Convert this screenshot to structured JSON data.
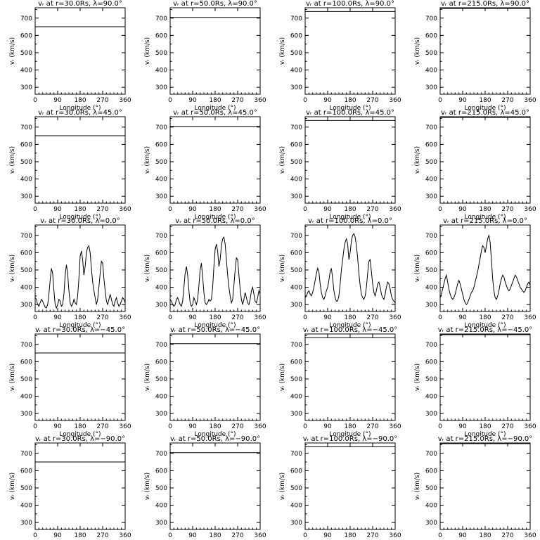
{
  "common": {
    "xlabel": "Longitude (°)",
    "ylabel": "vᵣ (km/s)",
    "xlim": [
      0,
      360
    ],
    "ylim": [
      260,
      760
    ],
    "xticks": [
      0,
      90,
      180,
      270,
      360
    ],
    "yticks": [
      300,
      400,
      500,
      600,
      700
    ],
    "color": "#000000"
  },
  "chart_data": [
    {
      "type": "line",
      "title": "vᵣ at r=30.0Rs, λ=90.0°",
      "x": [
        0,
        360
      ],
      "y": [
        650,
        650
      ]
    },
    {
      "type": "line",
      "title": "vᵣ at r=50.0Rs, λ=90.0°",
      "x": [
        0,
        360
      ],
      "y": [
        704,
        704
      ]
    },
    {
      "type": "line",
      "title": "vᵣ at r=100.0Rs, λ=90.0°",
      "x": [
        0,
        360
      ],
      "y": [
        738,
        738
      ]
    },
    {
      "type": "line",
      "title": "vᵣ at r=215.0Rs, λ=90.0°",
      "x": [
        0,
        360
      ],
      "y": [
        756,
        756
      ]
    },
    {
      "type": "line",
      "title": "vᵣ at r=30.0Rs, λ=45.0°",
      "x": [
        0,
        360
      ],
      "y": [
        650,
        650
      ]
    },
    {
      "type": "line",
      "title": "vᵣ at r=50.0Rs, λ=45.0°",
      "x": [
        0,
        360
      ],
      "y": [
        704,
        704
      ]
    },
    {
      "type": "line",
      "title": "vᵣ at r=100.0Rs, λ=45.0°",
      "x": [
        0,
        360
      ],
      "y": [
        738,
        738
      ]
    },
    {
      "type": "line",
      "title": "vᵣ at r=215.0Rs, λ=45.0°",
      "x": [
        0,
        360
      ],
      "y": [
        756,
        756
      ]
    },
    {
      "type": "line",
      "title": "vᵣ at r=30.0Rs, λ=0.0°",
      "x": [
        0,
        5,
        10,
        15,
        20,
        25,
        30,
        35,
        40,
        45,
        50,
        55,
        60,
        65,
        70,
        75,
        80,
        85,
        90,
        95,
        100,
        105,
        110,
        115,
        120,
        125,
        130,
        135,
        140,
        145,
        150,
        155,
        160,
        165,
        170,
        175,
        180,
        185,
        190,
        195,
        200,
        205,
        210,
        215,
        220,
        225,
        230,
        235,
        240,
        245,
        250,
        255,
        260,
        265,
        270,
        275,
        280,
        285,
        290,
        295,
        300,
        305,
        310,
        315,
        320,
        325,
        330,
        335,
        340,
        345,
        350,
        355,
        360
      ],
      "y": [
        340,
        330,
        300,
        290,
        310,
        330,
        320,
        300,
        285,
        280,
        300,
        360,
        440,
        510,
        480,
        380,
        300,
        280,
        300,
        330,
        320,
        290,
        300,
        360,
        470,
        530,
        480,
        380,
        310,
        290,
        300,
        330,
        310,
        300,
        350,
        450,
        580,
        610,
        560,
        470,
        520,
        600,
        630,
        640,
        600,
        510,
        430,
        380,
        340,
        300,
        330,
        400,
        480,
        550,
        540,
        450,
        380,
        320,
        300,
        330,
        360,
        330,
        300,
        290,
        320,
        340,
        310,
        290,
        300,
        320,
        340,
        330,
        310
      ]
    },
    {
      "type": "line",
      "title": "vᵣ at r=50.0Rs, λ=0.0°",
      "x": [
        0,
        5,
        10,
        15,
        20,
        25,
        30,
        35,
        40,
        45,
        50,
        55,
        60,
        65,
        70,
        75,
        80,
        85,
        90,
        95,
        100,
        105,
        110,
        115,
        120,
        125,
        130,
        135,
        140,
        145,
        150,
        155,
        160,
        165,
        170,
        175,
        180,
        185,
        190,
        195,
        200,
        205,
        210,
        215,
        220,
        225,
        230,
        235,
        240,
        245,
        250,
        255,
        260,
        265,
        270,
        275,
        280,
        285,
        290,
        295,
        300,
        305,
        310,
        315,
        320,
        325,
        330,
        335,
        340,
        345,
        350,
        355,
        360
      ],
      "y": [
        330,
        320,
        300,
        290,
        300,
        330,
        340,
        320,
        300,
        290,
        320,
        400,
        480,
        520,
        470,
        380,
        310,
        290,
        300,
        340,
        320,
        300,
        330,
        410,
        500,
        540,
        460,
        370,
        310,
        300,
        310,
        330,
        320,
        330,
        400,
        520,
        620,
        650,
        610,
        520,
        560,
        640,
        680,
        690,
        650,
        560,
        470,
        400,
        350,
        310,
        330,
        410,
        500,
        570,
        560,
        470,
        390,
        330,
        300,
        330,
        370,
        340,
        310,
        300,
        330,
        380,
        400,
        360,
        320,
        310,
        340,
        380,
        360
      ]
    },
    {
      "type": "line",
      "title": "vᵣ at r=100.0Rs, λ=0.0°",
      "x": [
        0,
        5,
        10,
        15,
        20,
        25,
        30,
        35,
        40,
        45,
        50,
        55,
        60,
        65,
        70,
        75,
        80,
        85,
        90,
        95,
        100,
        105,
        110,
        115,
        120,
        125,
        130,
        135,
        140,
        145,
        150,
        155,
        160,
        165,
        170,
        175,
        180,
        185,
        190,
        195,
        200,
        205,
        210,
        215,
        220,
        225,
        230,
        235,
        240,
        245,
        250,
        255,
        260,
        265,
        270,
        275,
        280,
        285,
        290,
        295,
        300,
        305,
        310,
        315,
        320,
        325,
        330,
        335,
        340,
        345,
        350,
        355,
        360
      ],
      "y": [
        340,
        350,
        370,
        380,
        360,
        350,
        370,
        400,
        440,
        480,
        510,
        490,
        420,
        370,
        340,
        330,
        350,
        380,
        400,
        440,
        490,
        510,
        450,
        380,
        340,
        320,
        320,
        350,
        420,
        500,
        560,
        620,
        660,
        680,
        650,
        560,
        600,
        670,
        700,
        710,
        690,
        640,
        570,
        480,
        410,
        360,
        340,
        330,
        350,
        400,
        480,
        550,
        560,
        490,
        420,
        370,
        350,
        380,
        420,
        430,
        400,
        360,
        340,
        330,
        360,
        400,
        430,
        420,
        390,
        350,
        330,
        320,
        310
      ]
    },
    {
      "type": "line",
      "title": "vᵣ at r=215.0Rs, λ=0.0°",
      "x": [
        0,
        5,
        10,
        15,
        20,
        25,
        30,
        35,
        40,
        45,
        50,
        55,
        60,
        65,
        70,
        75,
        80,
        85,
        90,
        95,
        100,
        105,
        110,
        115,
        120,
        125,
        130,
        135,
        140,
        145,
        150,
        155,
        160,
        165,
        170,
        175,
        180,
        185,
        190,
        195,
        200,
        205,
        210,
        215,
        220,
        225,
        230,
        235,
        240,
        245,
        250,
        255,
        260,
        265,
        270,
        275,
        280,
        285,
        290,
        295,
        300,
        305,
        310,
        315,
        320,
        325,
        330,
        335,
        340,
        345,
        350,
        355,
        360
      ],
      "y": [
        340,
        360,
        390,
        420,
        450,
        470,
        430,
        390,
        360,
        340,
        330,
        340,
        360,
        390,
        420,
        440,
        420,
        390,
        360,
        330,
        310,
        300,
        310,
        330,
        350,
        370,
        380,
        400,
        430,
        460,
        490,
        530,
        570,
        610,
        640,
        630,
        600,
        640,
        680,
        700,
        660,
        560,
        450,
        380,
        340,
        330,
        350,
        380,
        420,
        450,
        470,
        460,
        430,
        410,
        390,
        380,
        390,
        410,
        430,
        450,
        470,
        460,
        440,
        420,
        400,
        390,
        380,
        370,
        380,
        400,
        420,
        430,
        410
      ]
    },
    {
      "type": "line",
      "title": "vᵣ at r=30.0Rs, λ=−45.0°",
      "x": [
        0,
        360
      ],
      "y": [
        650,
        650
      ]
    },
    {
      "type": "line",
      "title": "vᵣ at r=50.0Rs, λ=−45.0°",
      "x": [
        0,
        360
      ],
      "y": [
        704,
        704
      ]
    },
    {
      "type": "line",
      "title": "vᵣ at r=100.0Rs, λ=−45.0°",
      "x": [
        0,
        360
      ],
      "y": [
        738,
        738
      ]
    },
    {
      "type": "line",
      "title": "vᵣ at r=215.0Rs, λ=−45.0°",
      "x": [
        0,
        360
      ],
      "y": [
        756,
        756
      ]
    },
    {
      "type": "line",
      "title": "vᵣ at r=30.0Rs, λ=−90.0°",
      "x": [
        0,
        360
      ],
      "y": [
        650,
        650
      ]
    },
    {
      "type": "line",
      "title": "vᵣ at r=50.0Rs, λ=−90.0°",
      "x": [
        0,
        360
      ],
      "y": [
        704,
        704
      ]
    },
    {
      "type": "line",
      "title": "vᵣ at r=100.0Rs, λ=−90.0°",
      "x": [
        0,
        360
      ],
      "y": [
        738,
        738
      ]
    },
    {
      "type": "line",
      "title": "vᵣ at r=215.0Rs, λ=−90.0°",
      "x": [
        0,
        360
      ],
      "y": [
        756,
        756
      ]
    }
  ]
}
